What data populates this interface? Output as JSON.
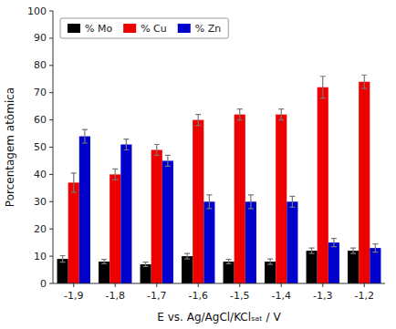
{
  "chart_data": {
    "type": "bar",
    "xlabel": "E vs. Ag/AgCl/KClₛₐₜ / V",
    "ylabel": "Porcentagem atômica",
    "categories": [
      "-1,9",
      "-1,8",
      "-1,7",
      "-1,6",
      "-1,5",
      "-1,4",
      "-1,3",
      "-1,2"
    ],
    "series": [
      {
        "name": "% Mo",
        "color": "#000000",
        "values": [
          9.0,
          8.0,
          7.0,
          10.0,
          8.0,
          8.0,
          12.0,
          12.0
        ],
        "errors": [
          1.2,
          0.8,
          0.8,
          1.0,
          0.8,
          1.0,
          1.0,
          1.0
        ]
      },
      {
        "name": "% Cu",
        "color": "#ee0000",
        "values": [
          37.0,
          40.0,
          49.0,
          60.0,
          62.0,
          62.0,
          72.0,
          74.0
        ],
        "errors": [
          3.5,
          2.0,
          2.0,
          2.0,
          2.0,
          2.0,
          4.0,
          2.5
        ]
      },
      {
        "name": "% Zn",
        "color": "#0000cc",
        "values": [
          54.0,
          51.0,
          45.0,
          30.0,
          30.0,
          30.0,
          15.0,
          13.0
        ],
        "errors": [
          2.5,
          2.0,
          2.0,
          2.5,
          2.5,
          2.0,
          1.5,
          1.5
        ]
      }
    ],
    "ylim": [
      0,
      100
    ],
    "yticks": [
      0,
      10,
      20,
      30,
      40,
      50,
      60,
      70,
      80,
      90,
      100
    ],
    "grid": false,
    "legend": "upper left"
  }
}
